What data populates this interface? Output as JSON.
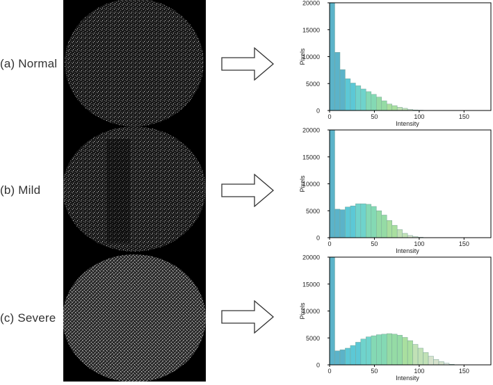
{
  "rows": [
    {
      "label": "(a) Normal"
    },
    {
      "label": "(b) Mild"
    },
    {
      "label": "(c) Severe"
    }
  ],
  "palette": [
    "#5bb3c9",
    "#5cc8d6",
    "#6fd3cc",
    "#84d9b4",
    "#95dba5",
    "#a9df9f",
    "#c1e1b6",
    "#d6e2cc",
    "#e4e8e1"
  ],
  "chart_data": [
    {
      "type": "bar",
      "panel": "(a) Normal",
      "xlabel": "Intensity",
      "ylabel": "Pixels",
      "xlim": [
        0,
        180
      ],
      "ylim": [
        0,
        20000
      ],
      "xticks": [
        "0",
        "50",
        "100",
        "150"
      ],
      "yticks": [
        "0",
        "5000",
        "10000",
        "15000",
        "20000"
      ],
      "bin_width": 5.8,
      "bins_start": [
        0,
        5.8,
        11.6,
        17.4,
        23.2,
        29.0,
        34.8,
        40.6,
        46.4,
        52.2,
        58.0,
        63.8,
        69.6,
        75.4,
        81.2,
        87.0,
        92.8,
        98.6,
        104.4
      ],
      "values": [
        20000,
        10800,
        7600,
        5900,
        5100,
        4600,
        4000,
        3500,
        3000,
        2500,
        1800,
        1200,
        900,
        600,
        400,
        200,
        100,
        60,
        30
      ]
    },
    {
      "type": "bar",
      "panel": "(b) Mild",
      "xlabel": "Intensity",
      "ylabel": "Pixels",
      "xlim": [
        0,
        180
      ],
      "ylim": [
        0,
        20000
      ],
      "xticks": [
        "0",
        "50",
        "100",
        "150"
      ],
      "yticks": [
        "0",
        "5000",
        "10000",
        "15000",
        "20000"
      ],
      "bin_width": 5.8,
      "bins_start": [
        0,
        5.8,
        11.6,
        17.4,
        23.2,
        29.0,
        34.8,
        40.6,
        46.4,
        52.2,
        58.0,
        63.8,
        69.6,
        75.4,
        81.2,
        87.0,
        92.8,
        98.6,
        104.4
      ],
      "values": [
        20000,
        5300,
        5200,
        5700,
        5900,
        6300,
        6300,
        6200,
        5800,
        5000,
        4200,
        3200,
        2300,
        1500,
        800,
        400,
        200,
        80,
        30
      ]
    },
    {
      "type": "bar",
      "panel": "(c) Severe",
      "xlabel": "Intensity",
      "ylabel": "Pixels",
      "xlim": [
        0,
        180
      ],
      "ylim": [
        0,
        20000
      ],
      "xticks": [
        "0",
        "50",
        "100",
        "150"
      ],
      "yticks": [
        "0",
        "5000",
        "10000",
        "15000",
        "20000"
      ],
      "bin_width": 5.8,
      "bins_start": [
        0,
        5.8,
        11.6,
        17.4,
        23.2,
        29.0,
        34.8,
        40.6,
        46.4,
        52.2,
        58.0,
        63.8,
        69.6,
        75.4,
        81.2,
        87.0,
        92.8,
        98.6,
        104.4,
        110.2,
        116.0,
        121.8,
        127.6,
        133.4
      ],
      "values": [
        20000,
        2600,
        2800,
        3100,
        3600,
        4200,
        4800,
        5200,
        5400,
        5600,
        5700,
        5800,
        5700,
        5500,
        5100,
        4500,
        3800,
        3100,
        2300,
        1600,
        1000,
        600,
        300,
        100
      ]
    }
  ]
}
